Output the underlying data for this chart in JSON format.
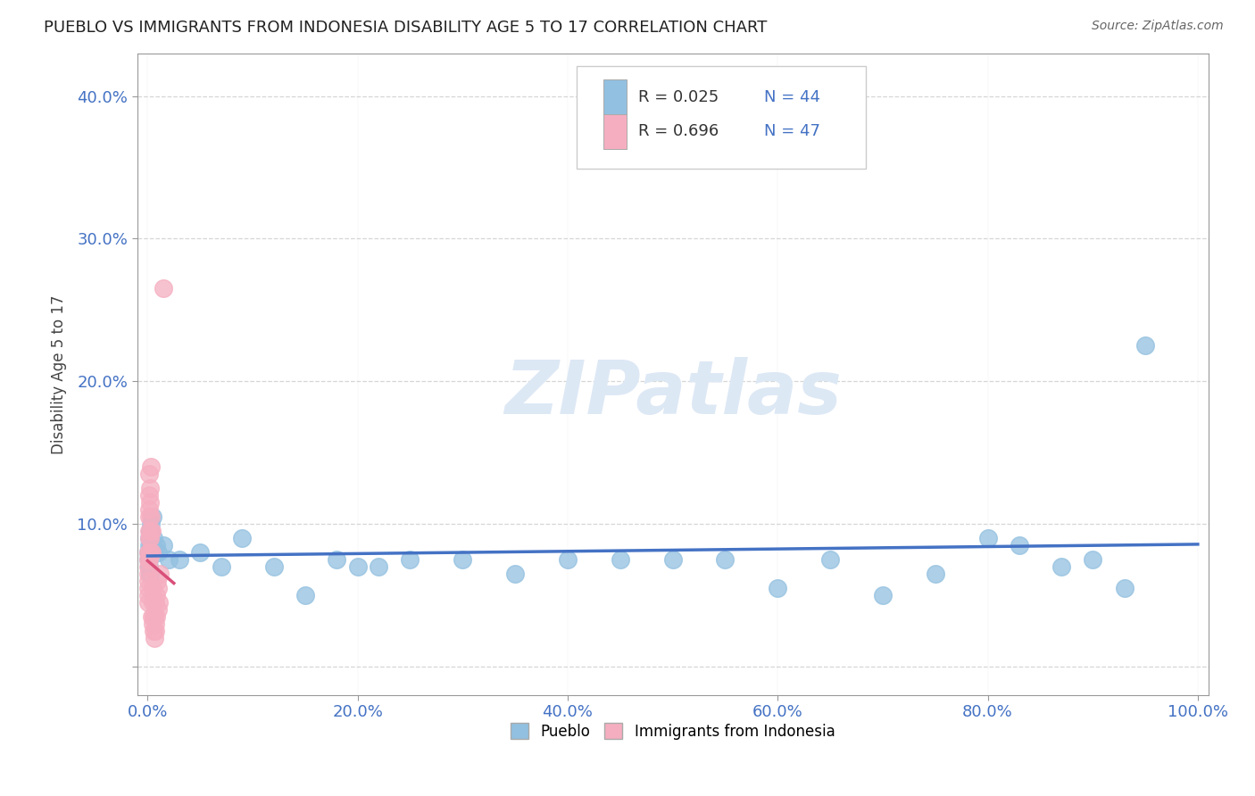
{
  "title": "PUEBLO VS IMMIGRANTS FROM INDONESIA DISABILITY AGE 5 TO 17 CORRELATION CHART",
  "source": "Source: ZipAtlas.com",
  "ylabel": "Disability Age 5 to 17",
  "xlim": [
    -1,
    101
  ],
  "ylim": [
    -2,
    43
  ],
  "yticks": [
    0,
    10,
    20,
    30,
    40
  ],
  "ytick_labels": [
    "",
    "10.0%",
    "20.0%",
    "30.0%",
    "40.0%"
  ],
  "xtick_positions": [
    0,
    20,
    40,
    60,
    80,
    100
  ],
  "xtick_labels": [
    "0.0%",
    "20.0%",
    "40.0%",
    "60.0%",
    "80.0%",
    "100.0%"
  ],
  "legend_r_pueblo": "R = 0.025",
  "legend_n_pueblo": "N = 44",
  "legend_r_indonesia": "R = 0.696",
  "legend_n_indonesia": "N = 47",
  "legend_label_pueblo": "Pueblo",
  "legend_label_indonesia": "Immigrants from Indonesia",
  "pueblo_color": "#92c0e0",
  "indonesia_color": "#f5aec0",
  "trend_pueblo_color": "#4472c4",
  "trend_indonesia_color": "#d94f7a",
  "pueblo_x": [
    0.05,
    0.08,
    0.1,
    0.12,
    0.15,
    0.18,
    0.2,
    0.22,
    0.25,
    0.3,
    0.35,
    0.4,
    0.5,
    0.6,
    0.8,
    1.0,
    1.5,
    2.0,
    3.0,
    5.0,
    7.0,
    9.0,
    12.0,
    15.0,
    18.0,
    20.0,
    22.0,
    25.0,
    30.0,
    35.0,
    40.0,
    45.0,
    50.0,
    55.0,
    60.0,
    65.0,
    70.0,
    75.0,
    80.0,
    83.0,
    87.0,
    90.0,
    93.0,
    95.0
  ],
  "pueblo_y": [
    7.5,
    8.0,
    7.0,
    8.5,
    9.0,
    7.5,
    6.5,
    8.0,
    9.5,
    10.0,
    8.5,
    8.0,
    10.5,
    9.0,
    8.5,
    8.0,
    8.5,
    7.5,
    7.5,
    8.0,
    7.0,
    9.0,
    7.0,
    5.0,
    7.5,
    7.0,
    7.0,
    7.5,
    7.5,
    6.5,
    7.5,
    7.5,
    7.5,
    7.5,
    5.5,
    7.5,
    5.0,
    6.5,
    9.0,
    8.5,
    7.0,
    7.5,
    5.5,
    22.5
  ],
  "indonesia_x": [
    0.02,
    0.03,
    0.04,
    0.05,
    0.06,
    0.07,
    0.08,
    0.09,
    0.1,
    0.11,
    0.12,
    0.13,
    0.14,
    0.15,
    0.16,
    0.18,
    0.2,
    0.22,
    0.25,
    0.28,
    0.3,
    0.32,
    0.35,
    0.38,
    0.4,
    0.42,
    0.45,
    0.48,
    0.5,
    0.52,
    0.55,
    0.58,
    0.6,
    0.62,
    0.65,
    0.68,
    0.7,
    0.72,
    0.75,
    0.8,
    0.85,
    0.9,
    0.95,
    1.0,
    1.1,
    1.2,
    1.5
  ],
  "indonesia_y": [
    5.5,
    7.0,
    6.5,
    5.0,
    4.5,
    6.0,
    8.0,
    7.5,
    9.0,
    7.5,
    10.5,
    9.5,
    8.0,
    11.0,
    12.0,
    13.5,
    11.5,
    9.0,
    12.5,
    14.0,
    10.5,
    9.5,
    8.0,
    9.5,
    8.0,
    3.5,
    5.5,
    4.5,
    3.0,
    5.5,
    3.5,
    2.5,
    3.5,
    3.5,
    2.0,
    3.5,
    3.0,
    2.5,
    4.5,
    5.0,
    3.5,
    6.0,
    5.5,
    4.0,
    4.5,
    6.5,
    26.5
  ],
  "watermark_text": "ZIPatlas",
  "background_color": "#ffffff",
  "grid_color": "#cccccc",
  "spine_color": "#999999",
  "tick_color": "#4472c4",
  "title_color": "#222222",
  "source_color": "#666666"
}
